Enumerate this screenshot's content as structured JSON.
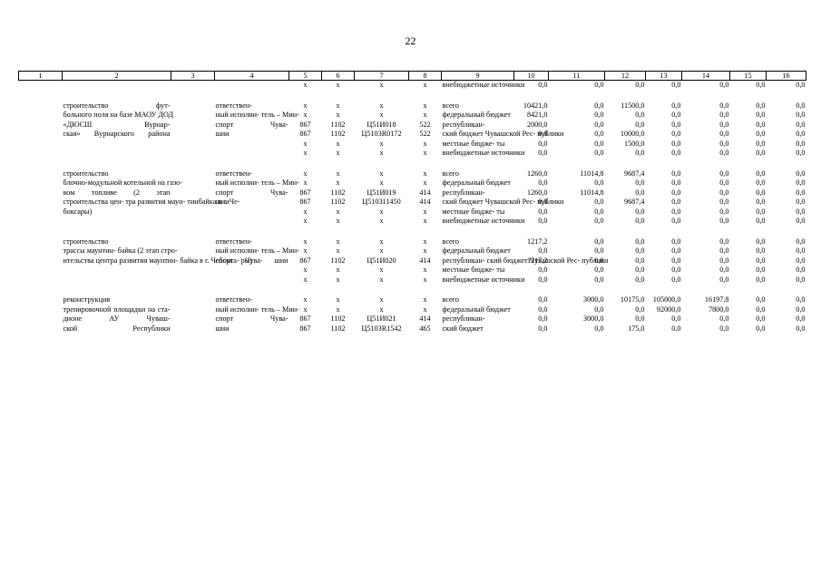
{
  "page_number": "22",
  "columns": [
    "1",
    "2",
    "3",
    "4",
    "5",
    "6",
    "7",
    "8",
    "9",
    "10",
    "11",
    "12",
    "13",
    "14",
    "15",
    "16"
  ],
  "rows": [
    {
      "c2": "",
      "c4": "",
      "c5": "x",
      "c6": "x",
      "c7": "x",
      "c8": "x",
      "c9": "внебюджетные источники",
      "c10": "0,0",
      "c11": "0,0",
      "c12": "0,0",
      "c13": "0,0",
      "c14": "0,0",
      "c15": "0,0",
      "c16": "0,0",
      "gap": true
    },
    {
      "c2": "строительство фут-",
      "c4": "ответствен-",
      "c5": "x",
      "c6": "x",
      "c7": "x",
      "c8": "x",
      "c9": "всего",
      "c10": "10421,0",
      "c11": "0,0",
      "c12": "11500,0",
      "c13": "0,0",
      "c14": "0,0",
      "c15": "0,0",
      "c16": "0,0"
    },
    {
      "c2": "больного поля на базе МАОУ ДОД",
      "c4": "ный исполни- тель – Мин-",
      "c5": "x",
      "c6": "x",
      "c7": "x",
      "c8": "x",
      "c9": "федеральный бюджет",
      "c10": "8421,0",
      "c11": "0,0",
      "c12": "0,0",
      "c13": "0,0",
      "c14": "0,0",
      "c15": "0,0",
      "c16": "0,0"
    },
    {
      "c2": "«ДЮСШ Вурнар-",
      "c4": "спорт Чува-",
      "c5": "867",
      "c6": "1102",
      "c7": "Ц51И018",
      "c8": "522",
      "c9": "республикан-",
      "c10": "2000,0",
      "c11": "0,0",
      "c12": "0,0",
      "c13": "0,0",
      "c14": "0,0",
      "c15": "0,0",
      "c16": "0,0"
    },
    {
      "c2": "ская» Вурнарского района",
      "c4": "шии",
      "c5": "867",
      "c6": "1102",
      "c7": "Ц5103R0172",
      "c8": "522",
      "c9": "ский бюджет Чувашской Рес- публики",
      "c10": "0,0",
      "c11": "0,0",
      "c12": "10000,0",
      "c13": "0,0",
      "c14": "0,0",
      "c15": "0,0",
      "c16": "0,0"
    },
    {
      "c2": "",
      "c4": "",
      "c5": "x",
      "c6": "x",
      "c7": "x",
      "c8": "x",
      "c9": "местные бюдже- ты",
      "c10": "0,0",
      "c11": "0,0",
      "c12": "1500,0",
      "c13": "0,0",
      "c14": "0,0",
      "c15": "0,0",
      "c16": "0,0"
    },
    {
      "c2": "",
      "c4": "",
      "c5": "x",
      "c6": "x",
      "c7": "x",
      "c8": "x",
      "c9": "внебюджетные источники",
      "c10": "0,0",
      "c11": "0,0",
      "c12": "0,0",
      "c13": "0,0",
      "c14": "0,0",
      "c15": "0,0",
      "c16": "0,0",
      "gap": true
    },
    {
      "c2": "строительство",
      "c4": "ответствен-",
      "c5": "x",
      "c6": "x",
      "c7": "x",
      "c8": "x",
      "c9": "всего",
      "c10": "1260,0",
      "c11": "11014,8",
      "c12": "9687,4",
      "c13": "0,0",
      "c14": "0,0",
      "c15": "0,0",
      "c16": "0,0"
    },
    {
      "c2": "блочно-модульной котельной на газо-",
      "c4": "ный исполни- тель – Мин-",
      "c5": "x",
      "c6": "x",
      "c7": "x",
      "c8": "x",
      "c9": "федеральный бюджет",
      "c10": "0,0",
      "c11": "0,0",
      "c12": "0,0",
      "c13": "0,0",
      "c14": "0,0",
      "c15": "0,0",
      "c16": "0,0"
    },
    {
      "c2": "вом топливе (2 этап",
      "c4": "спорт Чува-",
      "c5": "867",
      "c6": "1102",
      "c7": "Ц51И019",
      "c8": "414",
      "c9": "республикан-",
      "c10": "1260,0",
      "c11": "11014,8",
      "c12": "0,0",
      "c13": "0,0",
      "c14": "0,0",
      "c15": "0,0",
      "c16": "0,0"
    },
    {
      "c2": "строительства цен- тра развития маун- тинбайка в г. Че-",
      "c4": "шии",
      "c5": "867",
      "c6": "1102",
      "c7": "Ц510311450",
      "c8": "414",
      "c9": "ский бюджет Чувашской Рес- публики",
      "c10": "0,0",
      "c11": "0,0",
      "c12": "9687,4",
      "c13": "0,0",
      "c14": "0,0",
      "c15": "0,0",
      "c16": "0,0"
    },
    {
      "c2": "боксары)",
      "c4": "",
      "c5": "x",
      "c6": "x",
      "c7": "x",
      "c8": "x",
      "c9": "местные бюдже- ты",
      "c10": "0,0",
      "c11": "0,0",
      "c12": "0,0",
      "c13": "0,0",
      "c14": "0,0",
      "c15": "0,0",
      "c16": "0,0"
    },
    {
      "c2": "",
      "c4": "",
      "c5": "x",
      "c6": "x",
      "c7": "x",
      "c8": "x",
      "c9": "внебюджетные источники",
      "c10": "0,0",
      "c11": "0,0",
      "c12": "0,0",
      "c13": "0,0",
      "c14": "0,0",
      "c15": "0,0",
      "c16": "0,0",
      "gap": true
    },
    {
      "c2": "строительство",
      "c4": "ответствен-",
      "c5": "x",
      "c6": "x",
      "c7": "x",
      "c8": "x",
      "c9": "всего",
      "c10": "1217,2",
      "c11": "0,0",
      "c12": "0,0",
      "c13": "0,0",
      "c14": "0,0",
      "c15": "0,0",
      "c16": "0,0"
    },
    {
      "c2": "трассы маунтин- байка (2 этап стро-",
      "c4": "ный исполни- тель – Мин-",
      "c5": "x",
      "c6": "x",
      "c7": "x",
      "c8": "x",
      "c9": "федеральный бюджет",
      "c10": "0,0",
      "c11": "0,0",
      "c12": "0,0",
      "c13": "0,0",
      "c14": "0,0",
      "c15": "0,0",
      "c16": "0,0"
    },
    {
      "c2": "ительства центра развития маунтин- байка в г. Чебокса- ры)",
      "c4": "спорт Чува- шии",
      "c5": "867",
      "c6": "1102",
      "c7": "Ц51И020",
      "c8": "414",
      "c9": "республикан- ский бюджет Чувашской Рес- публики",
      "c10": "1217,2",
      "c11": "0,0",
      "c12": "0,0",
      "c13": "0,0",
      "c14": "0,0",
      "c15": "0,0",
      "c16": "0,0"
    },
    {
      "c2": "",
      "c4": "",
      "c5": "x",
      "c6": "x",
      "c7": "x",
      "c8": "x",
      "c9": "местные бюдже- ты",
      "c10": "0,0",
      "c11": "0,0",
      "c12": "0,0",
      "c13": "0,0",
      "c14": "0,0",
      "c15": "0,0",
      "c16": "0,0"
    },
    {
      "c2": "",
      "c4": "",
      "c5": "x",
      "c6": "x",
      "c7": "x",
      "c8": "x",
      "c9": "внебюджетные источники",
      "c10": "0,0",
      "c11": "0,0",
      "c12": "0,0",
      "c13": "0,0",
      "c14": "0,0",
      "c15": "0,0",
      "c16": "0,0",
      "gap": true
    },
    {
      "c2": "реконструкция",
      "c4": "ответствен-",
      "c5": "x",
      "c6": "x",
      "c7": "x",
      "c8": "x",
      "c9": "всего",
      "c10": "0,0",
      "c11": "3000,0",
      "c12": "10175,0",
      "c13": "105000,0",
      "c14": "16197,8",
      "c15": "0,0",
      "c16": "0,0"
    },
    {
      "c2": "тренировочной площадки на ста-",
      "c4": "ный исполни- тель – Мин-",
      "c5": "x",
      "c6": "x",
      "c7": "x",
      "c8": "x",
      "c9": "федеральный бюджет",
      "c10": "0,0",
      "c11": "0,0",
      "c12": "0,0",
      "c13": "92000,0",
      "c14": "7800,0",
      "c15": "0,0",
      "c16": "0,0"
    },
    {
      "c2": "дионе АУ Чуваш-",
      "c4": "спорт Чува-",
      "c5": "867",
      "c6": "1102",
      "c7": "Ц51И021",
      "c8": "414",
      "c9": "республикан-",
      "c10": "0,0",
      "c11": "3000,0",
      "c12": "0,0",
      "c13": "0,0",
      "c14": "0,0",
      "c15": "0,0",
      "c16": "0,0"
    },
    {
      "c2": "ской Республики",
      "c4": "шии",
      "c5": "867",
      "c6": "1102",
      "c7": "Ц5103R1542",
      "c8": "465",
      "c9": "ский бюджет",
      "c10": "0,0",
      "c11": "0,0",
      "c12": "175,0",
      "c13": "0,0",
      "c14": "0,0",
      "c15": "0,0",
      "c16": "0,0"
    }
  ]
}
